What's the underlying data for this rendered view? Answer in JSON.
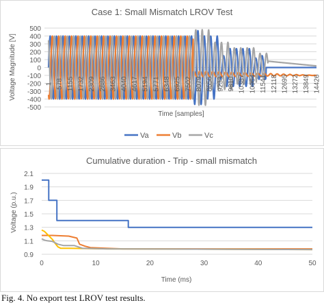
{
  "chart_data": [
    {
      "type": "line",
      "title": "Case 1: Small Mismatch LROV Test",
      "xlabel": "Time [samples]",
      "ylabel": "Voltage Magnitude [V]",
      "ylim": [
        -500,
        500
      ],
      "yticks": [
        500,
        400,
        300,
        200,
        100,
        0,
        -100,
        -200,
        -300,
        -400,
        -500
      ],
      "xticks": [
        "1",
        "578",
        "1155",
        "1732",
        "2309",
        "2886",
        "3463",
        "4040",
        "4617",
        "5194",
        "5771",
        "6348",
        "6925",
        "7502",
        "8079",
        "8656",
        "9233",
        "9810",
        "10387",
        "10964",
        "11541",
        "12118",
        "12695",
        "13272",
        "13849",
        "14426"
      ],
      "grid": true,
      "legend_position": "bottom",
      "series": [
        {
          "name": "Va",
          "color": "#4472C4"
        },
        {
          "name": "Vb",
          "color": "#ED7D31"
        },
        {
          "name": "Vc",
          "color": "#A5A5A5"
        }
      ]
    },
    {
      "type": "line",
      "title": "Cumulative duration - Trip - small mismatch",
      "xlabel": "Time (ms)",
      "ylabel": "Voltage (p.u.)",
      "xlim": [
        0,
        50
      ],
      "ylim": [
        0.9,
        2.1
      ],
      "xticks": [
        "0",
        "10",
        "20",
        "30",
        "40",
        "50"
      ],
      "yticks": [
        "2.1",
        "1.9",
        "1.7",
        "1.5",
        "1.3",
        "1.1",
        "0.9"
      ],
      "grid": true,
      "series": [
        {
          "color": "#4472C4",
          "x": [
            0,
            1.3,
            1.3,
            2.8,
            2.8,
            16,
            16,
            50
          ],
          "y": [
            2.0,
            2.0,
            1.7,
            1.7,
            1.4,
            1.4,
            1.3,
            1.3
          ]
        },
        {
          "color": "#ED7D31",
          "x": [
            0,
            2,
            5,
            6.5,
            7,
            8,
            9,
            12,
            15,
            50
          ],
          "y": [
            1.18,
            1.18,
            1.17,
            1.14,
            1.05,
            1.02,
            1.0,
            0.99,
            0.98,
            0.98
          ]
        },
        {
          "color": "#FFC000",
          "x": [
            0,
            0.5,
            1,
            2,
            2.5,
            3,
            3.5,
            5,
            12,
            50
          ],
          "y": [
            1.26,
            1.24,
            1.2,
            1.12,
            1.06,
            1.01,
            0.99,
            0.99,
            0.98,
            0.97
          ]
        },
        {
          "color": "#A5A5A5",
          "x": [
            0,
            0.5,
            1,
            2,
            3,
            4,
            5,
            6,
            7.5,
            12,
            50
          ],
          "y": [
            1.13,
            1.11,
            1.1,
            1.09,
            1.05,
            1.03,
            1.03,
            1.03,
            0.99,
            0.98,
            0.97
          ]
        }
      ]
    }
  ],
  "caption": "Fig. 4. No export test LROV test results."
}
